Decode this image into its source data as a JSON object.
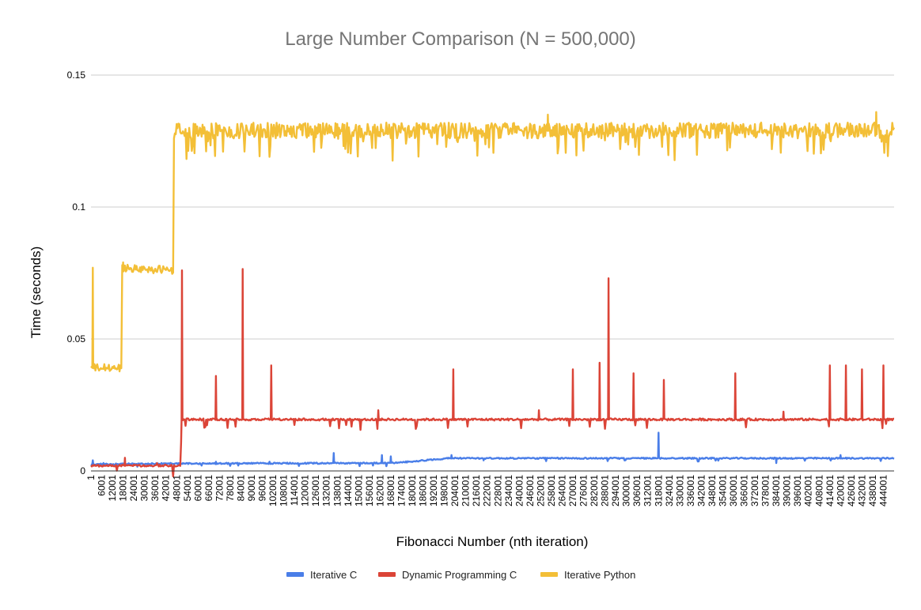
{
  "chart_data": {
    "type": "line",
    "title": "Large Number Comparison (N = 500,000)",
    "xlabel": "Fibonacci Number (nth iteration)",
    "ylabel": "Time (seconds)",
    "xlim": [
      1,
      450001
    ],
    "ylim": [
      0,
      0.15
    ],
    "y_ticks": [
      {
        "value": 0,
        "label": "0"
      },
      {
        "value": 0.05,
        "label": "0.05"
      },
      {
        "value": 0.1,
        "label": "0.1"
      },
      {
        "value": 0.15,
        "label": "0.15"
      }
    ],
    "x_tick_labels": [
      "1",
      "6001",
      "12001",
      "18001",
      "24001",
      "30001",
      "36001",
      "42001",
      "48001",
      "54001",
      "60001",
      "66001",
      "72001",
      "78001",
      "84001",
      "90001",
      "96001",
      "102001",
      "108001",
      "114001",
      "120001",
      "126001",
      "132001",
      "138001",
      "144001",
      "150001",
      "156001",
      "162001",
      "168001",
      "174001",
      "180001",
      "186001",
      "192001",
      "198001",
      "204001",
      "210001",
      "216001",
      "222001",
      "228001",
      "234001",
      "240001",
      "246001",
      "252001",
      "258001",
      "264001",
      "270001",
      "276001",
      "282001",
      "288001",
      "294001",
      "300001",
      "306001",
      "312001",
      "318001",
      "324001",
      "330001",
      "336001",
      "342001",
      "348001",
      "354001",
      "360001",
      "366001",
      "372001",
      "378001",
      "384001",
      "390001",
      "396001",
      "402001",
      "408001",
      "414001",
      "420001",
      "426001",
      "432001",
      "438001",
      "444001"
    ],
    "grid": true,
    "legend_position": "bottom",
    "series": [
      {
        "name": "Iterative C",
        "color": "#4a7ee8",
        "base_segments": [
          [
            1,
            0.0025
          ],
          [
            50000,
            0.0028
          ],
          [
            170000,
            0.003
          ],
          [
            200000,
            0.0048
          ],
          [
            450001,
            0.0048
          ]
        ],
        "spikes": [
          [
            1200,
            0.004
          ],
          [
            7000,
            0.003
          ],
          [
            70000,
            0.0035
          ],
          [
            100000,
            0.0035
          ],
          [
            136000,
            0.0068
          ],
          [
            163000,
            0.006
          ],
          [
            168000,
            0.0055
          ],
          [
            202000,
            0.006
          ],
          [
            212000,
            0.005
          ],
          [
            220000,
            0.004
          ],
          [
            318000,
            0.0145
          ],
          [
            384000,
            0.003
          ],
          [
            420000,
            0.006
          ]
        ]
      },
      {
        "name": "Dynamic Programming C",
        "color": "#db4437",
        "base_segments": [
          [
            1,
            0.002
          ],
          [
            50000,
            0.002
          ],
          [
            51000,
            0.0195
          ],
          [
            450001,
            0.0195
          ]
        ],
        "spikes": [
          [
            19000,
            0.005
          ],
          [
            37000,
            0.003
          ],
          [
            51000,
            0.076
          ],
          [
            70000,
            0.036
          ],
          [
            85000,
            0.0765
          ],
          [
            101000,
            0.04
          ],
          [
            161000,
            0.023
          ],
          [
            203000,
            0.0385
          ],
          [
            251000,
            0.023
          ],
          [
            270000,
            0.0385
          ],
          [
            285000,
            0.041
          ],
          [
            290000,
            0.073
          ],
          [
            304000,
            0.037
          ],
          [
            321000,
            0.0345
          ],
          [
            361000,
            0.037
          ],
          [
            388000,
            0.0225
          ],
          [
            414000,
            0.04
          ],
          [
            423000,
            0.04
          ],
          [
            432000,
            0.0385
          ],
          [
            444000,
            0.04
          ]
        ]
      },
      {
        "name": "Iterative Python",
        "color": "#f3bf37",
        "base_segments": [
          [
            1,
            0.039
          ],
          [
            17000,
            0.039
          ],
          [
            17500,
            0.077
          ],
          [
            46000,
            0.076
          ],
          [
            46500,
            0.129
          ],
          [
            450001,
            0.129
          ]
        ],
        "spikes": [
          [
            1000,
            0.077
          ],
          [
            18000,
            0.079
          ],
          [
            256000,
            0.135
          ],
          [
            440000,
            0.136
          ]
        ]
      }
    ]
  }
}
